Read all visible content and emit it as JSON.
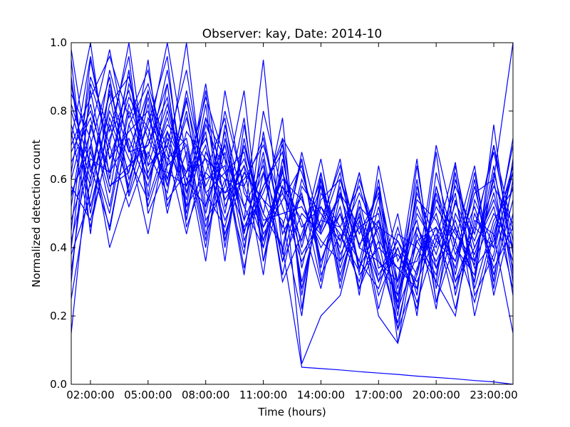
{
  "chart_data": {
    "type": "line",
    "title": "Observer: kay, Date: 2014-10",
    "xlabel": "Time (hours)",
    "ylabel": "Normalized detection count",
    "xlim": [
      1,
      24
    ],
    "ylim": [
      0,
      1
    ],
    "x_ticks": [
      {
        "value": 2,
        "label": "02:00:00"
      },
      {
        "value": 5,
        "label": "05:00:00"
      },
      {
        "value": 8,
        "label": "08:00:00"
      },
      {
        "value": 11,
        "label": "11:00:00"
      },
      {
        "value": 14,
        "label": "14:00:00"
      },
      {
        "value": 17,
        "label": "17:00:00"
      },
      {
        "value": 20,
        "label": "20:00:00"
      },
      {
        "value": 23,
        "label": "23:00:00"
      }
    ],
    "y_ticks": [
      {
        "value": 0,
        "label": "0.0"
      },
      {
        "value": 0.2,
        "label": "0.2"
      },
      {
        "value": 0.4,
        "label": "0.4"
      },
      {
        "value": 0.6,
        "label": "0.6"
      },
      {
        "value": 0.8,
        "label": "0.8"
      },
      {
        "value": 1.0,
        "label": "1.0"
      }
    ],
    "grid": false,
    "legend": false,
    "line_color": "#0000ff",
    "x": [
      1,
      2,
      3,
      4,
      5,
      6,
      7,
      8,
      9,
      10,
      11,
      12,
      13,
      14,
      15,
      16,
      17,
      18,
      19,
      20,
      21,
      22,
      23,
      24
    ],
    "series": [
      {
        "values": [
          0.98,
          0.62,
          0.85,
          0.55,
          0.72,
          0.6,
          0.83,
          0.58,
          0.7,
          0.45,
          0.56,
          0.72,
          0.62,
          0.44,
          0.55,
          0.41,
          0.48,
          0.3,
          0.46,
          0.34,
          0.53,
          0.42,
          0.58,
          0.47
        ]
      },
      {
        "values": [
          0.72,
          1.0,
          0.6,
          0.92,
          0.55,
          0.88,
          0.5,
          0.76,
          0.62,
          0.68,
          0.4,
          0.63,
          0.3,
          0.52,
          0.44,
          0.33,
          0.6,
          0.22,
          0.38,
          0.5,
          0.3,
          0.46,
          0.4,
          0.62
        ]
      },
      {
        "values": [
          0.55,
          0.74,
          0.98,
          0.68,
          0.86,
          0.64,
          1.0,
          0.52,
          0.8,
          0.58,
          0.72,
          0.44,
          0.55,
          0.36,
          0.5,
          0.28,
          0.42,
          0.16,
          0.32,
          0.7,
          0.45,
          0.35,
          0.64,
          0.3
        ]
      },
      {
        "values": [
          0.3,
          0.88,
          0.7,
          1.0,
          0.6,
          0.78,
          0.58,
          0.88,
          0.52,
          0.64,
          0.5,
          0.78,
          0.22,
          0.6,
          0.38,
          0.49,
          0.26,
          0.4,
          0.24,
          0.42,
          0.65,
          0.28,
          0.48,
          0.57
        ]
      },
      {
        "values": [
          0.9,
          0.5,
          0.78,
          0.62,
          0.95,
          0.52,
          0.68,
          0.4,
          0.72,
          0.48,
          0.95,
          0.38,
          0.68,
          0.45,
          0.62,
          0.34,
          0.55,
          0.12,
          0.44,
          0.3,
          0.2,
          0.54,
          0.4,
          0.72
        ]
      },
      {
        "values": [
          0.65,
          0.78,
          0.52,
          0.82,
          0.66,
          0.92,
          0.56,
          0.74,
          0.36,
          0.76,
          0.42,
          0.58,
          0.48,
          0.28,
          0.56,
          0.46,
          0.3,
          0.5,
          0.2,
          0.62,
          0.4,
          0.32,
          0.7,
          0.45
        ]
      },
      {
        "values": [
          0.8,
          0.6,
          0.92,
          0.7,
          0.44,
          0.74,
          0.62,
          0.84,
          0.66,
          0.52,
          0.64,
          0.32,
          0.58,
          0.5,
          0.42,
          0.62,
          0.36,
          0.26,
          0.52,
          0.38,
          0.56,
          0.2,
          0.44,
          0.64
        ]
      },
      {
        "values": [
          0.45,
          0.95,
          0.66,
          0.84,
          0.75,
          0.58,
          0.8,
          0.48,
          0.58,
          0.86,
          0.36,
          0.66,
          0.4,
          0.62,
          0.3,
          0.52,
          0.46,
          0.42,
          0.28,
          0.58,
          0.32,
          0.6,
          0.26,
          0.5
        ]
      },
      {
        "values": [
          0.15,
          0.7,
          0.45,
          0.76,
          0.88,
          0.68,
          0.44,
          0.68,
          0.56,
          0.6,
          0.7,
          0.52,
          0.36,
          0.48,
          0.64,
          0.4,
          0.58,
          0.3,
          0.66,
          0.24,
          0.5,
          0.38,
          0.56,
          0.34
        ]
      },
      {
        "values": [
          0.6,
          0.82,
          0.58,
          0.64,
          0.7,
          0.84,
          0.52,
          0.62,
          0.78,
          0.42,
          0.58,
          0.7,
          0.26,
          0.56,
          0.46,
          0.58,
          0.38,
          0.18,
          0.42,
          0.46,
          0.36,
          0.62,
          0.3,
          0.66
        ]
      },
      {
        "values": [
          0.38,
          0.55,
          0.82,
          0.9,
          0.64,
          0.7,
          0.92,
          0.56,
          0.46,
          0.7,
          0.5,
          0.4,
          0.66,
          0.34,
          0.58,
          0.26,
          0.64,
          0.36,
          0.48,
          0.22,
          0.6,
          0.4,
          0.52,
          0.28
        ]
      },
      {
        "values": [
          0.85,
          0.72,
          0.4,
          0.58,
          0.82,
          0.5,
          0.74,
          0.66,
          0.6,
          0.38,
          0.8,
          0.56,
          0.42,
          0.66,
          0.36,
          0.46,
          0.5,
          0.2,
          0.58,
          0.34,
          0.46,
          0.3,
          0.62,
          0.4
        ]
      },
      {
        "values": [
          0.52,
          0.9,
          0.74,
          0.96,
          0.5,
          0.64,
          0.7,
          0.42,
          0.86,
          0.56,
          0.46,
          0.6,
          0.54,
          0.4,
          0.5,
          0.36,
          0.28,
          0.46,
          0.26,
          0.68,
          0.26,
          0.5,
          0.36,
          0.58
        ]
      },
      {
        "values": [
          0.95,
          0.44,
          0.88,
          0.6,
          0.76,
          0.96,
          0.48,
          0.78,
          0.54,
          0.64,
          0.32,
          0.72,
          0.34,
          0.58,
          0.42,
          0.56,
          0.44,
          0.24,
          0.5,
          0.4,
          0.58,
          0.44,
          0.7,
          0.38
        ]
      },
      {
        "values": [
          0.42,
          0.66,
          0.62,
          0.72,
          0.58,
          0.8,
          0.6,
          0.52,
          0.7,
          0.48,
          0.62,
          0.36,
          0.6,
          0.46,
          0.66,
          0.32,
          0.4,
          0.34,
          0.36,
          0.52,
          0.42,
          0.24,
          0.46,
          0.62
        ]
      },
      {
        "values": [
          0.7,
          0.84,
          0.96,
          0.78,
          0.92,
          0.62,
          0.58,
          0.7,
          0.44,
          0.62,
          0.54,
          0.48,
          0.2,
          0.62,
          0.34,
          0.52,
          0.22,
          0.44,
          0.4,
          0.3,
          0.64,
          0.36,
          0.6,
          0.26
        ]
      },
      {
        "values": [
          0.58,
          0.48,
          0.7,
          0.52,
          0.68,
          0.56,
          0.86,
          0.6,
          0.64,
          0.32,
          0.74,
          0.44,
          0.56,
          0.3,
          0.6,
          0.44,
          0.56,
          0.28,
          0.54,
          0.48,
          0.34,
          0.58,
          0.32,
          0.54
        ]
      },
      {
        "values": [
          0.33,
          0.76,
          0.56,
          0.88,
          0.72,
          1.0,
          0.66,
          0.36,
          0.76,
          0.52,
          0.4,
          0.62,
          0.46,
          0.52,
          0.4,
          0.62,
          0.34,
          0.38,
          0.3,
          0.44,
          0.28,
          0.46,
          0.68,
          0.42
        ]
      },
      {
        "values": [
          0.76,
          0.58,
          0.8,
          0.66,
          0.54,
          0.72,
          0.52,
          0.82,
          0.4,
          0.72,
          0.44,
          0.54,
          0.64,
          0.36,
          0.52,
          0.28,
          0.48,
          0.22,
          0.64,
          0.28,
          0.54,
          0.34,
          0.42,
          0.7
        ]
      },
      {
        "values": [
          0.48,
          0.68,
          0.5,
          0.8,
          0.62,
          0.76,
          0.7,
          0.46,
          0.68,
          0.4,
          0.66,
          0.3,
          0.44,
          0.6,
          0.28,
          0.54,
          0.3,
          0.4,
          0.22,
          0.58,
          0.38,
          0.52,
          0.34,
          0.46
        ]
      },
      {
        "values": [
          0.62,
          0.96,
          0.66,
          0.74,
          0.8,
          0.54,
          0.62,
          0.72,
          0.5,
          0.78,
          0.36,
          0.58,
          0.38,
          0.48,
          0.46,
          0.36,
          0.58,
          0.16,
          0.46,
          0.36,
          0.48,
          0.3,
          0.76,
          0.32
        ]
      },
      {
        "values": [
          0.88,
          0.52,
          0.76,
          0.58,
          0.86,
          0.6,
          0.78,
          0.56,
          0.62,
          0.46,
          0.58,
          0.68,
          0.28,
          0.54,
          0.6,
          0.4,
          0.36,
          0.3,
          0.6,
          0.24,
          0.42,
          0.64,
          0.28,
          0.6
        ]
      },
      {
        "values": [
          0.25,
          0.6,
          0.86,
          0.68,
          0.7,
          0.88,
          0.46,
          0.62,
          0.56,
          0.66,
          0.48,
          0.5,
          0.52,
          0.42,
          0.36,
          0.6,
          0.42,
          0.34,
          0.28,
          0.56,
          0.3,
          0.4,
          0.54,
          0.36
        ]
      },
      {
        "values": [
          0.68,
          0.8,
          0.62,
          0.92,
          0.52,
          0.7,
          0.56,
          0.78,
          0.66,
          0.34,
          0.62,
          0.46,
          0.66,
          0.32,
          0.44,
          0.3,
          0.52,
          0.26,
          0.42,
          0.32,
          0.62,
          0.26,
          0.38,
          0.64
        ]
      },
      {
        "values": [
          0.56,
          0.7,
          0.9,
          0.56,
          0.78,
          0.66,
          0.72,
          0.44,
          0.6,
          0.58,
          0.42,
          0.64,
          0.06,
          0.2,
          0.26,
          0.48,
          0.2,
          0.12,
          0.34,
          0.46,
          0.22,
          0.48,
          0.44,
          0.15
        ]
      },
      {
        "values": [
          0.74,
          0.46,
          0.72,
          0.86,
          0.64,
          0.82,
          0.6,
          0.66,
          0.48,
          0.62,
          0.54,
          0.4,
          0.05,
          0.046,
          0.042,
          0.037,
          0.033,
          0.029,
          0.024,
          0.02,
          0.016,
          0.011,
          0.007,
          0.0
        ]
      },
      {
        "values": [
          0.4,
          0.86,
          0.58,
          0.62,
          0.84,
          0.58,
          0.84,
          0.5,
          0.74,
          0.44,
          0.68,
          0.36,
          0.5,
          0.44,
          0.56,
          0.34,
          0.46,
          0.24,
          0.56,
          0.42,
          0.36,
          0.56,
          0.6,
          1.0
        ]
      },
      {
        "values": [
          0.82,
          0.64,
          0.46,
          0.76,
          0.6,
          0.74,
          0.54,
          0.86,
          0.42,
          0.7,
          0.46,
          0.56,
          0.42,
          0.58,
          0.32,
          0.5,
          0.32,
          0.42,
          0.32,
          0.54,
          0.44,
          0.36,
          0.5,
          0.4
        ]
      }
    ]
  }
}
